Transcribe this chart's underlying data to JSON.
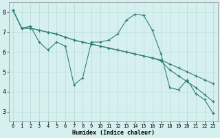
{
  "xlabel": "Humidex (Indice chaleur)",
  "background_color": "#d6f0f0",
  "grid_color": "#b8d8d8",
  "line_color": "#2e7f74",
  "xlim": [
    -0.5,
    23.5
  ],
  "ylim": [
    2.5,
    8.5
  ],
  "yticks": [
    3,
    4,
    5,
    6,
    7,
    8
  ],
  "xticks": [
    0,
    1,
    2,
    3,
    4,
    5,
    6,
    7,
    8,
    9,
    10,
    11,
    12,
    13,
    14,
    15,
    16,
    17,
    18,
    19,
    20,
    21,
    22,
    23
  ],
  "series": [
    [
      8.1,
      7.2,
      7.3,
      6.5,
      6.1,
      6.5,
      6.3,
      4.35,
      4.7,
      6.5,
      6.5,
      6.6,
      6.9,
      7.6,
      7.9,
      7.85,
      7.1,
      5.9,
      4.2,
      4.1,
      4.6,
      3.9,
      3.6,
      2.9
    ],
    [
      8.1,
      7.2,
      7.2,
      7.1,
      7.0,
      6.9,
      6.75,
      6.6,
      6.5,
      6.4,
      6.3,
      6.2,
      6.1,
      6.0,
      5.9,
      5.8,
      5.7,
      5.6,
      5.4,
      5.2,
      5.0,
      4.8,
      4.6,
      4.4
    ],
    [
      8.1,
      7.2,
      7.2,
      7.1,
      7.0,
      6.9,
      6.75,
      6.6,
      6.5,
      6.4,
      6.3,
      6.2,
      6.1,
      6.0,
      5.9,
      5.8,
      5.7,
      5.55,
      5.1,
      4.8,
      4.5,
      4.2,
      3.85,
      3.5
    ]
  ]
}
